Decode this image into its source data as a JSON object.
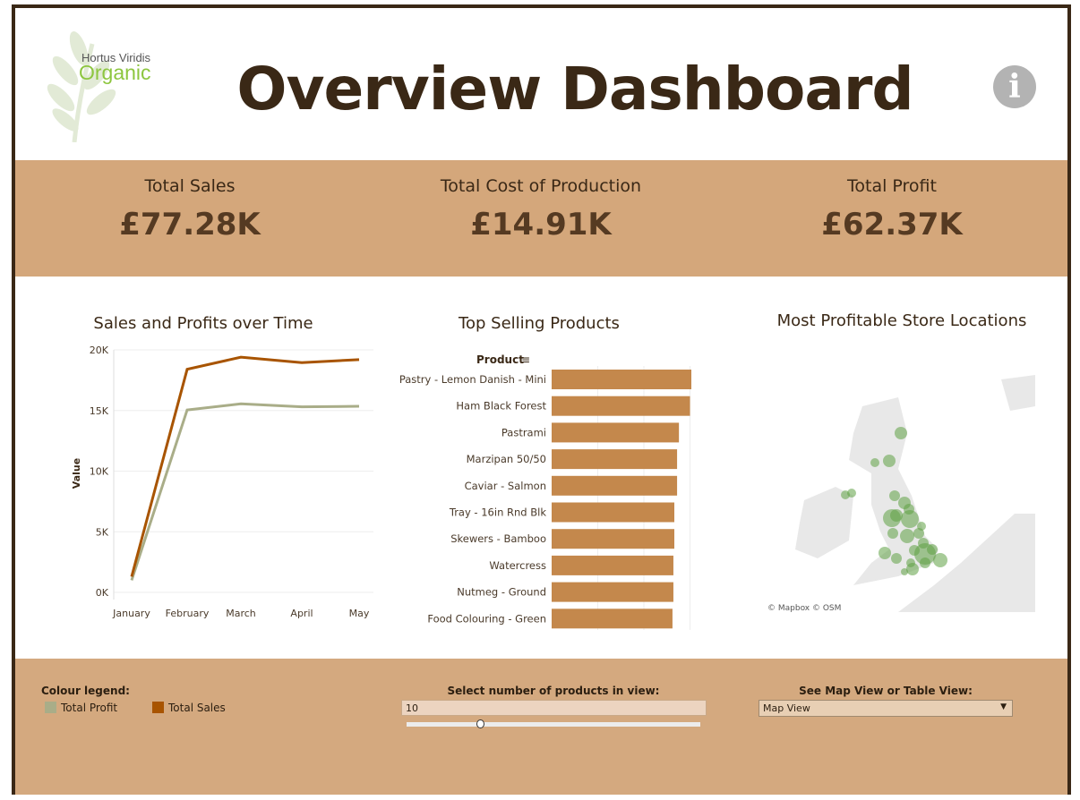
{
  "header": {
    "title": "Overview Dashboard",
    "logo_text_1": "Hortus Viridis",
    "logo_text_2": "Organic",
    "info_icon": "info-icon"
  },
  "kpis": [
    {
      "label": "Total Sales",
      "value": "£77.28K"
    },
    {
      "label": "Total Cost of Production",
      "value": "£14.91K"
    },
    {
      "label": "Total Profit",
      "value": "£62.37K"
    }
  ],
  "colors": {
    "sales": "#a85400",
    "profit": "#a9ad88",
    "bar": "#c4884c",
    "map_point": "#5fa043",
    "band": "#d4a77b",
    "dark": "#3a2816"
  },
  "chart_data": [
    {
      "type": "line",
      "title": "Sales and Profits over Time",
      "ylabel": "Value",
      "categories": [
        "January",
        "February",
        "March",
        "April",
        "May"
      ],
      "yticks": [
        "0K",
        "5K",
        "10K",
        "15K",
        "20K"
      ],
      "ylim": [
        0,
        20000
      ],
      "grid": true,
      "series": [
        {
          "name": "Total Sales",
          "values": [
            1300,
            18400,
            19400,
            18950,
            19200
          ]
        },
        {
          "name": "Total Profit",
          "values": [
            1000,
            15050,
            15550,
            15300,
            15350
          ]
        }
      ]
    },
    {
      "type": "bar",
      "title": "Top Selling Products",
      "xlabel": "",
      "ylabel": "Product",
      "orientation": "horizontal",
      "categories": [
        "Pastry - Lemon Danish - Mini",
        "Ham Black Forest",
        "Pastrami",
        "Marzipan 50/50",
        "Caviar - Salmon",
        "Tray - 16in Rnd Blk",
        "Skewers - Bamboo",
        "Watercress",
        "Nutmeg - Ground",
        "Food Colouring - Green"
      ],
      "values": [
        3.05,
        3.0,
        2.76,
        2.72,
        2.72,
        2.66,
        2.66,
        2.64,
        2.64,
        2.62
      ]
    }
  ],
  "map": {
    "title": "Most Profitable Store Locations",
    "attribution_1": "© Mapbox",
    "attribution_2": "© OSM"
  },
  "controls": {
    "legend_title": "Colour legend:",
    "legend_items": [
      "Total Profit",
      "Total Sales"
    ],
    "products_label": "Select number of products in view:",
    "products_value": "10",
    "slider_fraction": 0.25,
    "view_label": "See Map View or Table View:",
    "view_value": "Map View"
  }
}
